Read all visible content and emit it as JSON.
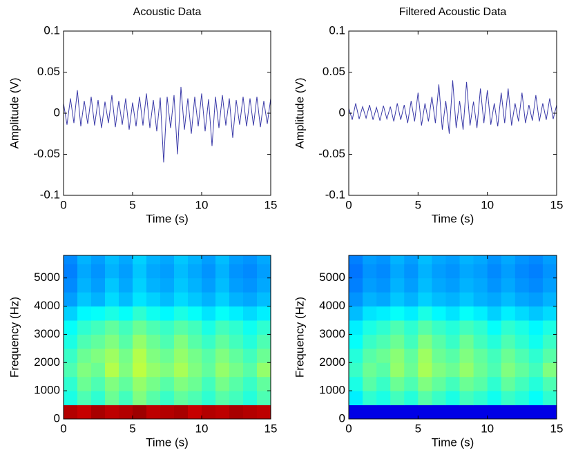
{
  "chart_data": [
    {
      "type": "line",
      "title": "Acoustic Data",
      "x_label": "Time (s)",
      "y_label": "Amplitude (V)",
      "xlim": [
        0,
        15
      ],
      "xticks": [
        0,
        5,
        10,
        15
      ],
      "ylim": [
        -0.1,
        0.1
      ],
      "yticks": [
        -0.1,
        -0.05,
        0,
        0.05,
        0.1
      ],
      "series": [
        {
          "color": "#3a3aa8",
          "x": [
            0,
            0.25,
            0.5,
            0.75,
            1,
            1.25,
            1.5,
            1.75,
            2,
            2.25,
            2.5,
            2.75,
            3,
            3.25,
            3.5,
            3.75,
            4,
            4.25,
            4.5,
            4.75,
            5,
            5.25,
            5.5,
            5.75,
            6,
            6.25,
            6.5,
            6.75,
            7,
            7.25,
            7.5,
            7.75,
            8,
            8.25,
            8.5,
            8.75,
            9,
            9.25,
            9.5,
            9.75,
            10,
            10.25,
            10.5,
            10.75,
            11,
            11.25,
            11.5,
            11.75,
            12,
            12.25,
            12.5,
            12.75,
            13,
            13.25,
            13.5,
            13.75,
            14,
            14.25,
            14.5,
            14.75,
            15
          ],
          "values": [
            0.012,
            -0.014,
            0.018,
            -0.012,
            0.028,
            -0.016,
            0.015,
            -0.013,
            0.02,
            -0.015,
            0.016,
            -0.018,
            0.014,
            -0.012,
            0.022,
            -0.017,
            0.015,
            -0.014,
            0.018,
            -0.02,
            0.013,
            -0.016,
            0.02,
            -0.015,
            0.024,
            -0.018,
            0.016,
            -0.022,
            0.019,
            -0.06,
            0.02,
            -0.018,
            0.022,
            -0.05,
            0.032,
            -0.02,
            0.018,
            -0.025,
            0.02,
            -0.016,
            0.024,
            -0.022,
            0.017,
            -0.04,
            0.02,
            -0.018,
            0.022,
            -0.015,
            0.018,
            -0.03,
            0.016,
            -0.014,
            0.02,
            -0.016,
            0.018,
            -0.015,
            0.02,
            -0.017,
            0.015,
            -0.013,
            0.018
          ]
        }
      ]
    },
    {
      "type": "line",
      "title": "Filtered Acoustic Data",
      "x_label": "Time (s)",
      "y_label": "Amplitude (V)",
      "xlim": [
        0,
        15
      ],
      "xticks": [
        0,
        5,
        10,
        15
      ],
      "ylim": [
        -0.1,
        0.1
      ],
      "yticks": [
        -0.1,
        -0.05,
        0,
        0.05,
        0.1
      ],
      "series": [
        {
          "color": "#3a3aa8",
          "x": [
            0,
            0.25,
            0.5,
            0.75,
            1,
            1.25,
            1.5,
            1.75,
            2,
            2.25,
            2.5,
            2.75,
            3,
            3.25,
            3.5,
            3.75,
            4,
            4.25,
            4.5,
            4.75,
            5,
            5.25,
            5.5,
            5.75,
            6,
            6.25,
            6.5,
            6.75,
            7,
            7.25,
            7.5,
            7.75,
            8,
            8.25,
            8.5,
            8.75,
            9,
            9.25,
            9.5,
            9.75,
            10,
            10.25,
            10.5,
            10.75,
            11,
            11.25,
            11.5,
            11.75,
            12,
            12.25,
            12.5,
            12.75,
            13,
            13.25,
            13.5,
            13.75,
            14,
            14.25,
            14.5,
            14.75,
            15
          ],
          "values": [
            0.006,
            -0.008,
            0.012,
            -0.007,
            0.008,
            -0.006,
            0.01,
            -0.008,
            0.007,
            -0.009,
            0.009,
            -0.007,
            0.008,
            -0.01,
            0.012,
            -0.008,
            0.01,
            -0.012,
            0.015,
            -0.01,
            0.025,
            -0.015,
            0.012,
            -0.01,
            0.02,
            -0.012,
            0.035,
            -0.02,
            0.015,
            -0.025,
            0.04,
            -0.018,
            0.015,
            -0.02,
            0.038,
            -0.015,
            0.014,
            -0.018,
            0.03,
            -0.012,
            0.028,
            -0.014,
            0.012,
            -0.016,
            0.025,
            -0.012,
            0.03,
            -0.015,
            0.012,
            -0.01,
            0.025,
            -0.012,
            0.01,
            -0.009,
            0.022,
            -0.01,
            0.012,
            -0.008,
            0.018,
            -0.007,
            0.01
          ]
        }
      ]
    },
    {
      "type": "heatmap",
      "x_label": "Time (s)",
      "y_label": "Frequency (Hz)",
      "colormap": "jet",
      "xlim": [
        0,
        15
      ],
      "xticks": [
        0,
        5,
        10,
        15
      ],
      "ylim": [
        0,
        5800
      ],
      "yticks": [
        0,
        1000,
        2000,
        3000,
        4000,
        5000
      ],
      "x": [
        0.5,
        1.5,
        2.5,
        3.5,
        4.5,
        5.5,
        6.5,
        7.5,
        8.5,
        9.5,
        10.5,
        11.5,
        12.5,
        13.5,
        14.5
      ],
      "y": [
        250,
        750,
        1250,
        1750,
        2250,
        2750,
        3250,
        3750,
        4250,
        4750,
        5250,
        5750
      ],
      "z": [
        [
          0.95,
          0.93,
          0.96,
          0.94,
          0.95,
          0.97,
          0.94,
          0.95,
          0.96,
          0.93,
          0.95,
          0.94,
          0.96,
          0.95,
          0.94
        ],
        [
          0.4,
          0.45,
          0.42,
          0.48,
          0.44,
          0.5,
          0.46,
          0.43,
          0.47,
          0.45,
          0.42,
          0.46,
          0.44,
          0.41,
          0.45
        ],
        [
          0.42,
          0.48,
          0.45,
          0.5,
          0.47,
          0.52,
          0.49,
          0.46,
          0.5,
          0.48,
          0.44,
          0.49,
          0.46,
          0.43,
          0.47
        ],
        [
          0.45,
          0.5,
          0.48,
          0.55,
          0.5,
          0.56,
          0.52,
          0.5,
          0.54,
          0.5,
          0.47,
          0.52,
          0.49,
          0.46,
          0.52
        ],
        [
          0.43,
          0.48,
          0.5,
          0.53,
          0.49,
          0.55,
          0.5,
          0.48,
          0.52,
          0.49,
          0.46,
          0.5,
          0.47,
          0.44,
          0.48
        ],
        [
          0.4,
          0.45,
          0.47,
          0.5,
          0.46,
          0.52,
          0.48,
          0.45,
          0.5,
          0.46,
          0.43,
          0.47,
          0.44,
          0.41,
          0.45
        ],
        [
          0.38,
          0.42,
          0.44,
          0.47,
          0.44,
          0.48,
          0.45,
          0.43,
          0.46,
          0.44,
          0.4,
          0.44,
          0.42,
          0.39,
          0.42
        ],
        [
          0.33,
          0.37,
          0.38,
          0.4,
          0.38,
          0.42,
          0.39,
          0.37,
          0.4,
          0.38,
          0.35,
          0.38,
          0.36,
          0.34,
          0.36
        ],
        [
          0.28,
          0.32,
          0.3,
          0.34,
          0.31,
          0.35,
          0.33,
          0.31,
          0.34,
          0.32,
          0.3,
          0.33,
          0.3,
          0.29,
          0.31
        ],
        [
          0.26,
          0.3,
          0.28,
          0.32,
          0.29,
          0.33,
          0.3,
          0.29,
          0.32,
          0.3,
          0.28,
          0.31,
          0.28,
          0.27,
          0.29
        ],
        [
          0.25,
          0.29,
          0.27,
          0.3,
          0.28,
          0.32,
          0.29,
          0.28,
          0.31,
          0.29,
          0.27,
          0.3,
          0.27,
          0.26,
          0.28
        ],
        [
          0.26,
          0.3,
          0.28,
          0.31,
          0.29,
          0.33,
          0.3,
          0.29,
          0.32,
          0.3,
          0.28,
          0.31,
          0.28,
          0.27,
          0.29
        ]
      ]
    },
    {
      "type": "heatmap",
      "x_label": "Time (s)",
      "y_label": "Frequency (Hz)",
      "colormap": "jet",
      "xlim": [
        0,
        15
      ],
      "xticks": [
        0,
        5,
        10,
        15
      ],
      "ylim": [
        0,
        5800
      ],
      "yticks": [
        0,
        1000,
        2000,
        3000,
        4000,
        5000
      ],
      "x": [
        0.5,
        1.5,
        2.5,
        3.5,
        4.5,
        5.5,
        6.5,
        7.5,
        8.5,
        9.5,
        10.5,
        11.5,
        12.5,
        13.5,
        14.5
      ],
      "y": [
        250,
        750,
        1250,
        1750,
        2250,
        2750,
        3250,
        3750,
        4250,
        4750,
        5250,
        5750
      ],
      "z": [
        [
          0.1,
          0.1,
          0.1,
          0.1,
          0.1,
          0.1,
          0.1,
          0.1,
          0.1,
          0.1,
          0.1,
          0.1,
          0.1,
          0.1,
          0.1
        ],
        [
          0.36,
          0.42,
          0.4,
          0.44,
          0.41,
          0.46,
          0.43,
          0.4,
          0.44,
          0.42,
          0.39,
          0.43,
          0.41,
          0.38,
          0.42
        ],
        [
          0.4,
          0.46,
          0.43,
          0.48,
          0.45,
          0.5,
          0.47,
          0.44,
          0.48,
          0.46,
          0.42,
          0.47,
          0.44,
          0.41,
          0.45
        ],
        [
          0.43,
          0.48,
          0.46,
          0.52,
          0.48,
          0.54,
          0.5,
          0.48,
          0.52,
          0.48,
          0.45,
          0.5,
          0.47,
          0.44,
          0.5
        ],
        [
          0.41,
          0.46,
          0.48,
          0.51,
          0.47,
          0.53,
          0.48,
          0.46,
          0.5,
          0.47,
          0.44,
          0.48,
          0.45,
          0.42,
          0.46
        ],
        [
          0.38,
          0.43,
          0.45,
          0.48,
          0.44,
          0.5,
          0.46,
          0.43,
          0.48,
          0.44,
          0.41,
          0.45,
          0.42,
          0.39,
          0.43
        ],
        [
          0.36,
          0.4,
          0.42,
          0.45,
          0.42,
          0.46,
          0.43,
          0.41,
          0.44,
          0.42,
          0.38,
          0.42,
          0.4,
          0.37,
          0.4
        ],
        [
          0.31,
          0.35,
          0.36,
          0.38,
          0.36,
          0.4,
          0.37,
          0.35,
          0.38,
          0.36,
          0.33,
          0.36,
          0.34,
          0.32,
          0.34
        ],
        [
          0.27,
          0.3,
          0.29,
          0.32,
          0.3,
          0.33,
          0.31,
          0.3,
          0.32,
          0.3,
          0.29,
          0.31,
          0.29,
          0.28,
          0.3
        ],
        [
          0.25,
          0.28,
          0.27,
          0.3,
          0.28,
          0.31,
          0.29,
          0.28,
          0.3,
          0.29,
          0.27,
          0.29,
          0.27,
          0.26,
          0.28
        ],
        [
          0.24,
          0.27,
          0.26,
          0.29,
          0.27,
          0.3,
          0.28,
          0.27,
          0.29,
          0.28,
          0.26,
          0.28,
          0.26,
          0.25,
          0.27
        ],
        [
          0.25,
          0.28,
          0.27,
          0.3,
          0.28,
          0.31,
          0.29,
          0.28,
          0.3,
          0.29,
          0.27,
          0.29,
          0.27,
          0.26,
          0.28
        ]
      ]
    }
  ]
}
